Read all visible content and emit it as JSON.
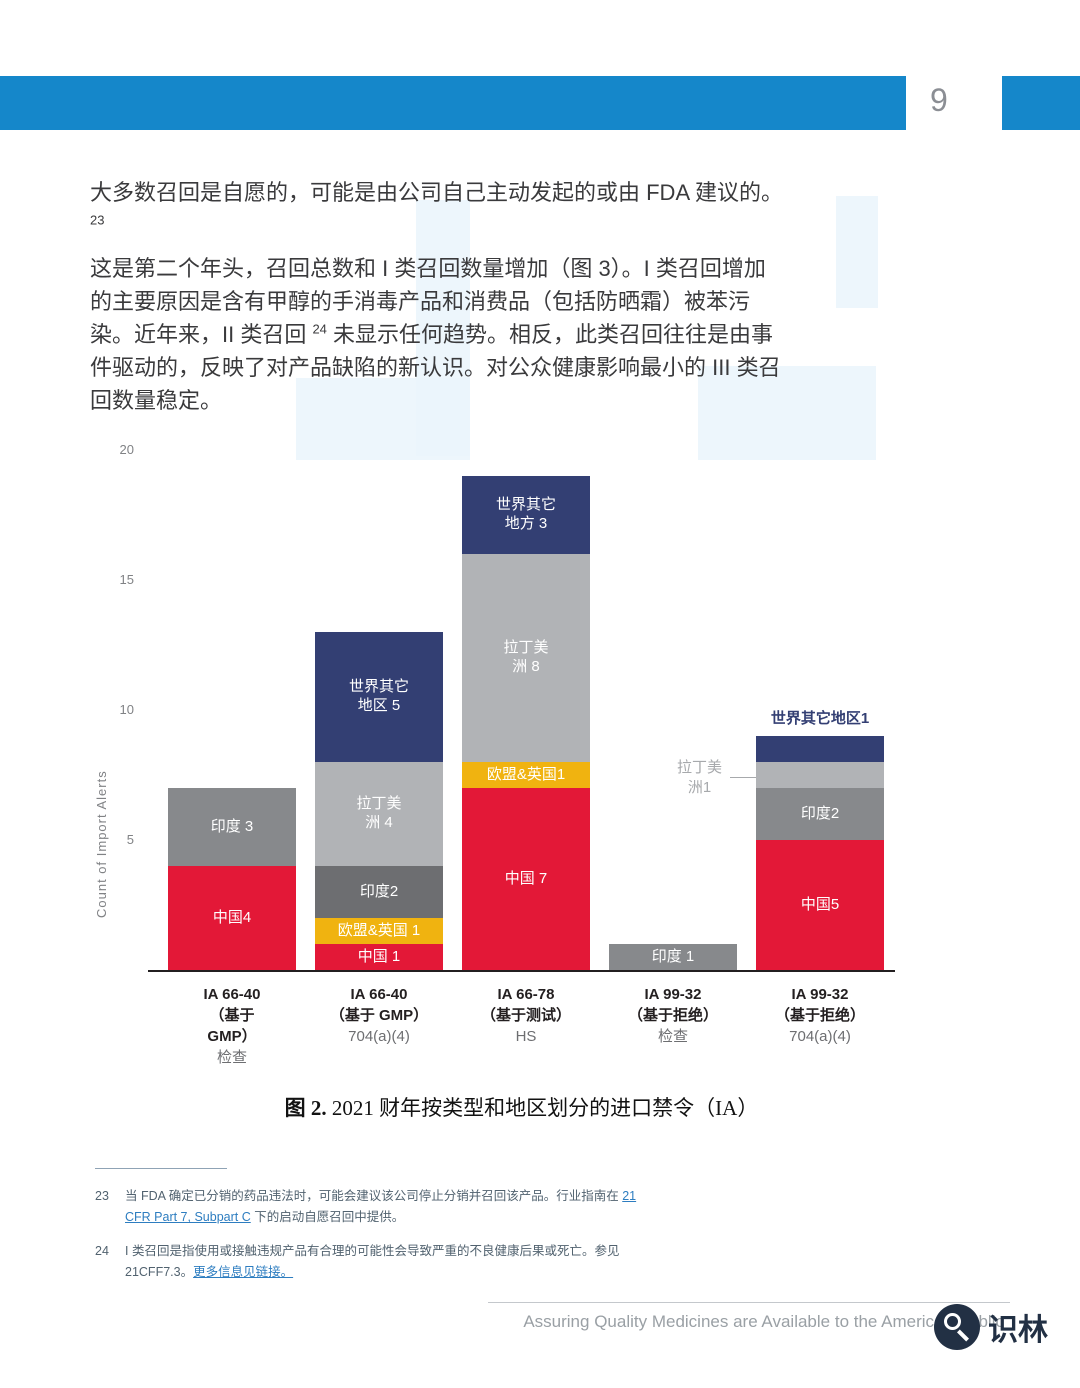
{
  "page": {
    "number": "9"
  },
  "body": {
    "para1": {
      "text": "大多数召回是自愿的，可能是由公司自己主动发起的或由 FDA 建议的。",
      "footnote_ref": "23"
    },
    "para2": {
      "text_before": "这是第二个年头，召回总数和 I 类召回数量增加（图 3）。I 类召回增加的主要原因是含有甲醇的手消毒产品和消费品（包括防晒霜）被苯污染。近年来，II 类召回 ",
      "footnote_ref": "24",
      "text_after": " 未显示任何趋势。相反，此类召回往往是由事件驱动的，反映了对产品缺陷的新认识。对公众健康影响最小的 III 类召回数量稳定。"
    }
  },
  "figure": {
    "caption_label": "图 2.",
    "caption_text": " 2021 财年按类型和地区划分的进口禁令（IA）"
  },
  "chart_data": {
    "type": "bar",
    "stacked": true,
    "title": "2021 财年按类型和地区划分的进口禁令（IA）",
    "ylabel": "Count of Import Alerts",
    "xlabel": "",
    "ylim": [
      0,
      21
    ],
    "yticks": [
      5,
      10,
      15,
      20
    ],
    "grid": false,
    "legend": "none",
    "region_colors": {
      "china": "#e31837",
      "eu_uk": "#f0b310",
      "india": "#6d6e71",
      "india_light": "#87898c",
      "latam": "#b1b3b6",
      "row": "#333f73"
    },
    "categories": [
      "IA 66-40（基于 GMP）检查",
      "IA 66-40（基于 GMP）704(a)(4)",
      "IA 66-78（基于测试）HS",
      "IA 99-32（基于拒绝）检查",
      "IA 99-32（基于拒绝）704(a)(4)"
    ],
    "series": [
      {
        "name": "中国",
        "color_key": "china",
        "values": [
          4,
          1,
          7,
          0,
          5
        ]
      },
      {
        "name": "欧盟&英国",
        "color_key": "eu_uk",
        "values": [
          0,
          1,
          1,
          0,
          0
        ]
      },
      {
        "name": "印度",
        "color_key": "india",
        "values": [
          3,
          2,
          0,
          1,
          2
        ]
      },
      {
        "name": "拉丁美洲",
        "color_key": "latam",
        "values": [
          0,
          4,
          8,
          0,
          1
        ]
      },
      {
        "name": "世界其它地区",
        "color_key": "row",
        "values": [
          0,
          5,
          3,
          0,
          1
        ]
      }
    ],
    "bars": [
      {
        "x_bold": [
          "IA 66-40",
          "（基于",
          "GMP）"
        ],
        "x_sub": "检查",
        "segments": [
          {
            "region": "中国",
            "value": 4,
            "color": "china",
            "label": "中国4"
          },
          {
            "region": "印度",
            "value": 3,
            "color": "india_light",
            "label": "印度 3"
          }
        ]
      },
      {
        "x_bold": [
          "IA 66-40",
          "（基于 GMP）"
        ],
        "x_sub": "704(a)(4)",
        "segments": [
          {
            "region": "中国",
            "value": 1,
            "color": "china",
            "label": "中国 1"
          },
          {
            "region": "欧盟&英国",
            "value": 1,
            "color": "eu_uk",
            "label": "欧盟&英国 1"
          },
          {
            "region": "印度",
            "value": 2,
            "color": "india",
            "label": "印度2"
          },
          {
            "region": "拉丁美洲",
            "value": 4,
            "color": "latam",
            "label": "拉丁美\n洲 4"
          },
          {
            "region": "世界其它地区",
            "value": 5,
            "color": "row",
            "label": "世界其它\n地区 5"
          }
        ]
      },
      {
        "x_bold": [
          "IA 66-78",
          "（基于测试）"
        ],
        "x_sub": "HS",
        "segments": [
          {
            "region": "中国",
            "value": 7,
            "color": "china",
            "label": "中国 7"
          },
          {
            "region": "欧盟&英国",
            "value": 1,
            "color": "eu_uk",
            "label": "欧盟&英国1"
          },
          {
            "region": "拉丁美洲",
            "value": 8,
            "color": "latam",
            "label": "拉丁美\n洲 8"
          },
          {
            "region": "世界其它地方",
            "value": 3,
            "color": "row",
            "label": "世界其它\n地方 3"
          }
        ]
      },
      {
        "x_bold": [
          "IA 99-32",
          "（基于拒绝）"
        ],
        "x_sub": "检查",
        "segments": [
          {
            "region": "印度",
            "value": 1,
            "color": "india_light",
            "label": "印度 1"
          }
        ]
      },
      {
        "x_bold": [
          "IA 99-32",
          "（基于拒绝）"
        ],
        "x_sub": "704(a)(4)",
        "segments": [
          {
            "region": "中国",
            "value": 5,
            "color": "china",
            "label": "中国5"
          },
          {
            "region": "印度",
            "value": 2,
            "color": "india_light",
            "label": "印度2"
          },
          {
            "region": "拉丁美洲",
            "value": 1,
            "color": "latam",
            "label": "拉丁美\n洲1",
            "label_mode": "callout"
          },
          {
            "region": "世界其它地区",
            "value": 1,
            "color": "row",
            "label": "世界其它地区1",
            "label_mode": "above"
          }
        ]
      }
    ]
  },
  "footnotes": [
    {
      "num": "23",
      "pre": "当 FDA 确定已分销的药品违法时，可能会建议该公司停止分销并召回该产品。行业指南在 ",
      "link": "21 CFR Part 7, Subpart C",
      "post": " 下的启动自愿召回中提供。"
    },
    {
      "num": "24",
      "pre": "I 类召回是指使用或接触违规产品有合理的可能性会导致严重的不良健康后果或死亡。参见 21CFF7.3。",
      "link": "更多信息见链接。",
      "post": ""
    }
  ],
  "footer": {
    "text": "Assuring Quality Medicines are Available to the American Public",
    "logo_text": "识林"
  }
}
